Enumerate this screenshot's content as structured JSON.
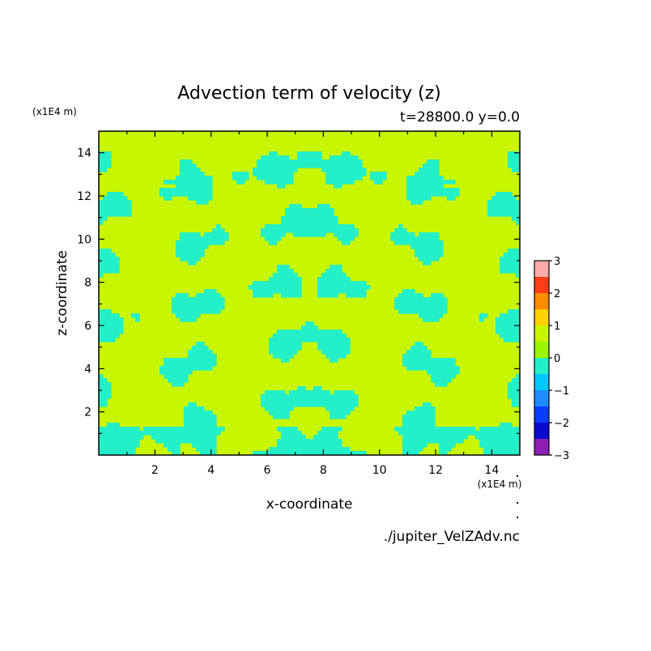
{
  "chart_data": {
    "type": "heatmap",
    "title": "Advection term of velocity (z)",
    "subtitle": "t=28800.0 y=0.0",
    "xlabel": "x-coordinate",
    "ylabel": "z-coordinate",
    "x_unit": "(x1E4 m)",
    "y_unit": "(x1E4 m)",
    "xlim": [
      0,
      15
    ],
    "ylim": [
      0,
      15
    ],
    "xticks": [
      2,
      4,
      6,
      8,
      10,
      12,
      14
    ],
    "yticks": [
      2,
      4,
      6,
      8,
      10,
      12,
      14
    ],
    "field_levels": {
      "note_regions": "field is predominantly in the 0..1 bin (yellow-green) with patches in the -1..0 bin (cyan)",
      "dominant_bin": [
        0,
        1
      ],
      "secondary_bin": [
        -1,
        0
      ]
    },
    "colorbar": {
      "levels": [
        -3,
        -2.5,
        -2,
        -1.5,
        -1,
        -0.5,
        0,
        0.5,
        1,
        1.5,
        2,
        2.5,
        3
      ],
      "labels": [
        "3",
        "2",
        "1",
        "0",
        "−1",
        "−2",
        "−3"
      ],
      "label_values": [
        3,
        2,
        1,
        0,
        -1,
        -2,
        -3
      ],
      "colors": [
        "#8c1eb4",
        "#0a0acd",
        "#0a3cff",
        "#1e8cff",
        "#00c8ff",
        "#23f0c8",
        "#9bf500",
        "#c8f500",
        "#ffd200",
        "#ff8c00",
        "#ff3c14",
        "#ffaaaa"
      ]
    },
    "source_file": "./jupiter_VelZAdv.nc"
  }
}
